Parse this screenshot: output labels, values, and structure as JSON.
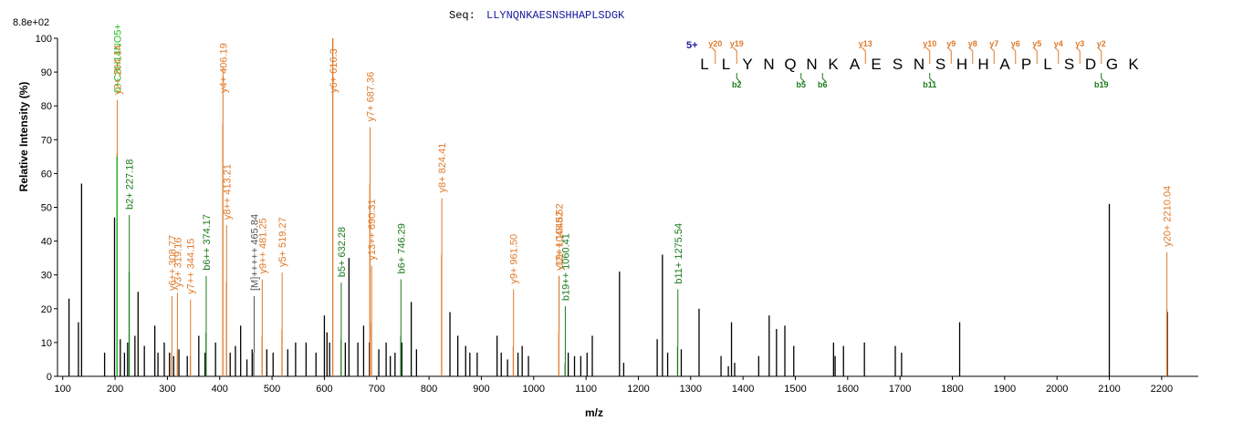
{
  "sequence_header": {
    "label": "Seq:",
    "value": "LLYNQNKAESNSHHAPLSDGK"
  },
  "colors": {
    "y_ion": "#e07a2a",
    "b_ion": "#1a7a1a",
    "b_label": "#22bb22",
    "neutral": "#000000",
    "other": "#555555",
    "seq_text": "#1a1aa0"
  },
  "chart_data": {
    "type": "bar",
    "title": "",
    "xlabel": "m/z",
    "ylabel": "Relative   Intensity (%)",
    "scale_label": "8.8e+02",
    "xlim": [
      90,
      2270
    ],
    "ylim": [
      0,
      100
    ],
    "x_ticks": [
      100,
      200,
      300,
      400,
      500,
      600,
      700,
      800,
      900,
      1000,
      1100,
      1200,
      1300,
      1400,
      1500,
      1600,
      1700,
      1800,
      1900,
      2000,
      2100,
      2200
    ],
    "y_ticks": [
      0,
      10,
      20,
      30,
      40,
      50,
      60,
      70,
      80,
      90,
      100
    ],
    "series": [
      {
        "kind": "neutral",
        "points": [
          [
            112,
            23
          ],
          [
            130,
            16
          ],
          [
            136,
            57
          ],
          [
            180,
            7
          ],
          [
            199,
            47
          ],
          [
            204,
            65
          ],
          [
            210,
            11
          ],
          [
            218,
            7
          ],
          [
            224,
            10
          ],
          [
            238,
            12
          ],
          [
            244,
            25
          ],
          [
            256,
            9
          ],
          [
            276,
            15
          ],
          [
            282,
            7
          ],
          [
            294,
            10
          ],
          [
            304,
            7
          ],
          [
            312,
            6
          ],
          [
            322,
            8
          ],
          [
            338,
            6
          ],
          [
            360,
            12
          ],
          [
            372,
            7
          ],
          [
            392,
            10
          ],
          [
            420,
            7
          ],
          [
            430,
            9
          ],
          [
            440,
            15
          ],
          [
            452,
            5
          ],
          [
            462,
            8
          ],
          [
            490,
            8
          ],
          [
            502,
            7
          ],
          [
            530,
            8
          ],
          [
            545,
            10
          ],
          [
            565,
            10
          ],
          [
            584,
            7
          ],
          [
            600,
            18
          ],
          [
            605,
            13
          ],
          [
            610,
            10
          ],
          [
            640,
            10
          ],
          [
            647,
            35
          ],
          [
            664,
            10
          ],
          [
            675,
            15
          ],
          [
            686,
            10
          ],
          [
            704,
            8
          ],
          [
            718,
            10
          ],
          [
            726,
            6
          ],
          [
            735,
            7
          ],
          [
            748,
            10
          ],
          [
            766,
            22
          ],
          [
            776,
            8
          ],
          [
            840,
            19
          ],
          [
            855,
            12
          ],
          [
            870,
            9
          ],
          [
            878,
            7
          ],
          [
            892,
            7
          ],
          [
            930,
            12
          ],
          [
            938,
            7
          ],
          [
            950,
            5
          ],
          [
            970,
            7
          ],
          [
            978,
            9
          ],
          [
            990,
            6
          ],
          [
            1066,
            7
          ],
          [
            1078,
            6
          ],
          [
            1090,
            6
          ],
          [
            1102,
            7
          ],
          [
            1112,
            12
          ],
          [
            1164,
            31
          ],
          [
            1172,
            4
          ],
          [
            1236,
            11
          ],
          [
            1246,
            36
          ],
          [
            1256,
            7
          ],
          [
            1282,
            8
          ],
          [
            1316,
            20
          ],
          [
            1358,
            6
          ],
          [
            1372,
            3
          ],
          [
            1378,
            16
          ],
          [
            1384,
            4
          ],
          [
            1430,
            6
          ],
          [
            1450,
            18
          ],
          [
            1464,
            14
          ],
          [
            1480,
            15
          ],
          [
            1497,
            9
          ],
          [
            1573,
            10
          ],
          [
            1576,
            6
          ],
          [
            1592,
            9
          ],
          [
            1632,
            10
          ],
          [
            1691,
            9
          ],
          [
            1703,
            7
          ],
          [
            1814,
            16
          ],
          [
            2100,
            51
          ],
          [
            2211,
            19
          ]
        ]
      },
      {
        "kind": "y",
        "points": [
          [
            308,
            7
          ],
          [
            319,
            8
          ],
          [
            344,
            6
          ],
          [
            406,
            75
          ],
          [
            413,
            28
          ],
          [
            481,
            12
          ],
          [
            519,
            14
          ],
          [
            616,
            100
          ],
          [
            687,
            57
          ],
          [
            690,
            16
          ],
          [
            824,
            36
          ],
          [
            961,
            9
          ],
          [
            1048,
            13
          ],
          [
            2210,
            20
          ]
        ]
      },
      {
        "kind": "b",
        "points": [
          [
            227,
            31
          ],
          [
            374,
            13
          ],
          [
            632,
            11
          ],
          [
            746,
            12
          ],
          [
            1060,
            4
          ],
          [
            1275,
            9
          ]
        ]
      },
      {
        "kind": "b_label",
        "points": [
          [
            204,
            66
          ]
        ]
      },
      {
        "kind": "other",
        "points": [
          [
            465,
            7
          ]
        ]
      }
    ],
    "annotations": [
      {
        "text": "0+C8H14NO5+",
        "x": 204.14,
        "y": 66,
        "kind": "b_label"
      },
      {
        "text": "y2+ 204.14",
        "x": 204.14,
        "y": 65,
        "kind": "y"
      },
      {
        "text": "b2+ 227.18",
        "x": 227.18,
        "y": 31,
        "kind": "b"
      },
      {
        "text": "y6++ 308.77",
        "x": 308.77,
        "y": 7,
        "kind": "y"
      },
      {
        "text": "y3+ 319.16",
        "x": 319.16,
        "y": 8,
        "kind": "y"
      },
      {
        "text": "y7++ 344.15",
        "x": 344.15,
        "y": 6,
        "kind": "y"
      },
      {
        "text": "b6++ 374.17",
        "x": 374.17,
        "y": 13,
        "kind": "b"
      },
      {
        "text": "y4+ 406.19",
        "x": 406.19,
        "y": 75,
        "kind": "y"
      },
      {
        "text": "y8++ 413.21",
        "x": 413.21,
        "y": 28,
        "kind": "y"
      },
      {
        "text": "[M]+++++ 465.84",
        "x": 465.84,
        "y": 7,
        "kind": "other"
      },
      {
        "text": "y9++ 481.25",
        "x": 481.25,
        "y": 12,
        "kind": "y"
      },
      {
        "text": "y5+ 519.27",
        "x": 519.27,
        "y": 14,
        "kind": "y"
      },
      {
        "text": "y6+ 616.3",
        "x": 616.3,
        "y": 100,
        "kind": "y"
      },
      {
        "text": "b5+ 632.28",
        "x": 632.28,
        "y": 11,
        "kind": "b"
      },
      {
        "text": "y7+ 687.36",
        "x": 687.36,
        "y": 57,
        "kind": "y"
      },
      {
        "text": "y13++ 690.31",
        "x": 690.31,
        "y": 16,
        "kind": "y"
      },
      {
        "text": "b6+ 746.29",
        "x": 746.29,
        "y": 12,
        "kind": "b"
      },
      {
        "text": "y8+ 824.41",
        "x": 824.41,
        "y": 36,
        "kind": "y"
      },
      {
        "text": "y9+ 961.50",
        "x": 961.5,
        "y": 9,
        "kind": "y"
      },
      {
        "text": "y19++ 1048.52",
        "x": 1048.52,
        "y": 13,
        "kind": "y"
      },
      {
        "text": "-12+ 1048.52",
        "x": 1048.52,
        "y": 13,
        "kind": "y"
      },
      {
        "text": "b19++ 1060.41",
        "x": 1060.41,
        "y": 4,
        "kind": "b"
      },
      {
        "text": "b11+ 1275.54",
        "x": 1275.54,
        "y": 9,
        "kind": "b"
      },
      {
        "text": "y20+ 2210.04",
        "x": 2210.04,
        "y": 20,
        "kind": "y"
      }
    ],
    "fragment_map": {
      "charge": "5+",
      "sequence": [
        "L",
        "L",
        "Y",
        "N",
        "Q",
        "N",
        "K",
        "A",
        "E",
        "S",
        "N",
        "S",
        "H",
        "H",
        "A",
        "P",
        "L",
        "S",
        "D",
        "G",
        "K"
      ],
      "y_marks": [
        {
          "after": 1,
          "label": "y20"
        },
        {
          "after": 2,
          "label": "y19"
        },
        {
          "after": 8,
          "label": "y13"
        },
        {
          "after": 11,
          "label": "y10"
        },
        {
          "after": 12,
          "label": "y9"
        },
        {
          "after": 13,
          "label": "y8"
        },
        {
          "after": 14,
          "label": "y7"
        },
        {
          "after": 15,
          "label": "y6"
        },
        {
          "after": 16,
          "label": "y5"
        },
        {
          "after": 17,
          "label": "y4"
        },
        {
          "after": 18,
          "label": "y3"
        },
        {
          "after": 19,
          "label": "y2"
        }
      ],
      "b_marks": [
        {
          "after": 2,
          "label": "b2"
        },
        {
          "after": 5,
          "label": "b5"
        },
        {
          "after": 6,
          "label": "b6"
        },
        {
          "after": 11,
          "label": "b11"
        },
        {
          "after": 19,
          "label": "b19"
        }
      ]
    }
  }
}
